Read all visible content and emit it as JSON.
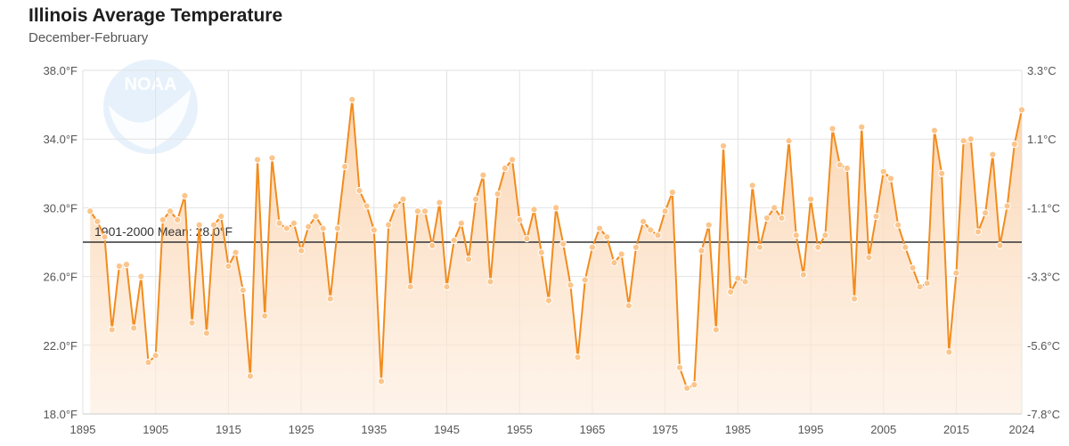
{
  "header": {
    "title": "Illinois Average Temperature",
    "subtitle": "December-February"
  },
  "logo": {
    "text": "NOAA",
    "icon": "noaa-logo"
  },
  "colors": {
    "line": "#f28c1e",
    "marker_fill": "#fbc58b",
    "area_top": "#fbd3ad",
    "area_bottom": "#fdecdc",
    "mean_line": "#333333",
    "grid": "#e2e2e2"
  },
  "chart_data": {
    "type": "line",
    "title": "Illinois Average Temperature",
    "subtitle": "December-February",
    "xlabel": "",
    "ylabel": "",
    "xlim": [
      1895,
      2024
    ],
    "ylim": [
      18.0,
      38.0
    ],
    "grid": true,
    "legend": "none",
    "x_ticks": [
      "1895",
      "1905",
      "1915",
      "1925",
      "1935",
      "1945",
      "1955",
      "1965",
      "1975",
      "1985",
      "1995",
      "2005",
      "2015",
      "2024"
    ],
    "y_ticks_left": [
      "38.0°F",
      "34.0°F",
      "30.0°F",
      "26.0°F",
      "22.0°F",
      "18.0°F"
    ],
    "y_ticks_right": [
      "3.3°C",
      "1.1°C",
      "-1.1°C",
      "-3.3°C",
      "-5.6°C",
      "-7.8°C"
    ],
    "mean": {
      "label": "1901-2000 Mean: 28.0°F",
      "value": 28.0
    },
    "series": [
      {
        "x": [
          1896,
          1897,
          1898,
          1899,
          1900,
          1901,
          1902,
          1903,
          1904,
          1905,
          1906,
          1907,
          1908,
          1909,
          1910,
          1911,
          1912,
          1913,
          1914,
          1915,
          1916,
          1917,
          1918,
          1919,
          1920,
          1921,
          1922,
          1923,
          1924,
          1925,
          1926,
          1927,
          1928,
          1929,
          1930,
          1931,
          1932,
          1933,
          1934,
          1935,
          1936,
          1937,
          1938,
          1939,
          1940,
          1941,
          1942,
          1943,
          1944,
          1945,
          1946,
          1947,
          1948,
          1949,
          1950,
          1951,
          1952,
          1953,
          1954,
          1955,
          1956,
          1957,
          1958,
          1959,
          1960,
          1961,
          1962,
          1963,
          1964,
          1965,
          1966,
          1967,
          1968,
          1969,
          1970,
          1971,
          1972,
          1973,
          1974,
          1975,
          1976,
          1977,
          1978,
          1979,
          1980,
          1981,
          1982,
          1983,
          1984,
          1985,
          1986,
          1987,
          1988,
          1989,
          1990,
          1991,
          1992,
          1993,
          1994,
          1995,
          1996,
          1997,
          1998,
          1999,
          2000,
          2001,
          2002,
          2003,
          2004,
          2005,
          2006,
          2007,
          2008,
          2009,
          2010,
          2011,
          2012,
          2013,
          2014,
          2015,
          2016,
          2017,
          2018,
          2019,
          2020,
          2021,
          2022,
          2023,
          2024
        ],
        "values": [
          29.8,
          29.2,
          28.3,
          22.9,
          26.6,
          26.7,
          23.0,
          26.0,
          21.0,
          21.4,
          29.3,
          29.8,
          29.3,
          30.7,
          23.3,
          29.0,
          22.7,
          29.0,
          29.5,
          26.6,
          27.4,
          25.2,
          20.2,
          32.8,
          23.7,
          32.9,
          29.1,
          28.8,
          29.1,
          27.5,
          28.9,
          29.5,
          28.8,
          24.7,
          28.8,
          32.4,
          36.3,
          31.0,
          30.1,
          28.7,
          19.9,
          29.0,
          30.1,
          30.5,
          25.4,
          29.8,
          29.8,
          27.8,
          30.3,
          25.4,
          28.1,
          29.1,
          27.0,
          30.5,
          31.9,
          25.7,
          30.8,
          32.3,
          32.8,
          29.3,
          28.2,
          29.9,
          27.4,
          24.6,
          30.0,
          27.9,
          25.5,
          21.3,
          25.8,
          27.7,
          28.8,
          28.3,
          26.8,
          27.3,
          24.3,
          27.7,
          29.2,
          28.7,
          28.4,
          29.8,
          30.9,
          20.7,
          19.5,
          19.7,
          27.5,
          29.0,
          22.9,
          33.6,
          25.1,
          25.9,
          25.7,
          31.3,
          27.7,
          29.4,
          30.0,
          29.4,
          33.9,
          28.4,
          26.1,
          30.5,
          27.7,
          28.4,
          34.6,
          32.5,
          32.3,
          24.7,
          34.7,
          27.1,
          29.5,
          32.1,
          31.7,
          29.0,
          27.7,
          26.5,
          25.4,
          25.6,
          34.5,
          32.0,
          21.6,
          26.2,
          33.9,
          34.0,
          28.6,
          29.7,
          33.1,
          27.8,
          30.1,
          33.7,
          35.7
        ]
      }
    ]
  }
}
